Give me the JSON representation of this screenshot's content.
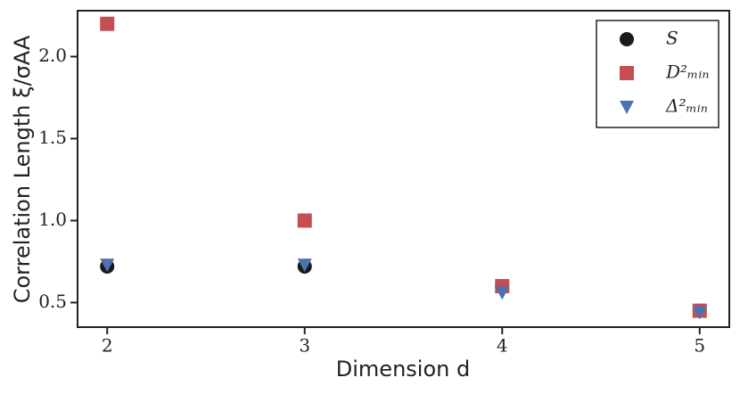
{
  "chart_data": {
    "type": "scatter",
    "xlabel": "Dimension d",
    "ylabel": "Correlation Length ξ/σAA",
    "x": [
      2,
      3,
      4,
      5
    ],
    "series": [
      {
        "name": "S",
        "color": "#1a1a1a",
        "marker": "circle",
        "values": [
          0.72,
          0.72,
          0.6,
          0.45
        ]
      },
      {
        "name": "D²ₘᵢₙ",
        "color": "#c44e52",
        "marker": "square",
        "values": [
          2.2,
          1.0,
          0.6,
          0.45
        ]
      },
      {
        "name": "Δ²ₘᵢₙ",
        "color": "#4c72b0",
        "marker": "triangle-down",
        "values": [
          0.73,
          0.73,
          0.56,
          0.44
        ]
      }
    ],
    "xlim": [
      1.85,
      5.15
    ],
    "xticks": [
      2,
      3,
      4,
      5
    ],
    "ylim": [
      0.35,
      2.28
    ],
    "yticks": [
      0.5,
      {
        "value": 1.0,
        "label": "1.0"
      },
      1.5,
      {
        "value": 2.0,
        "label": "2.0"
      }
    ],
    "legend": "upper right"
  }
}
